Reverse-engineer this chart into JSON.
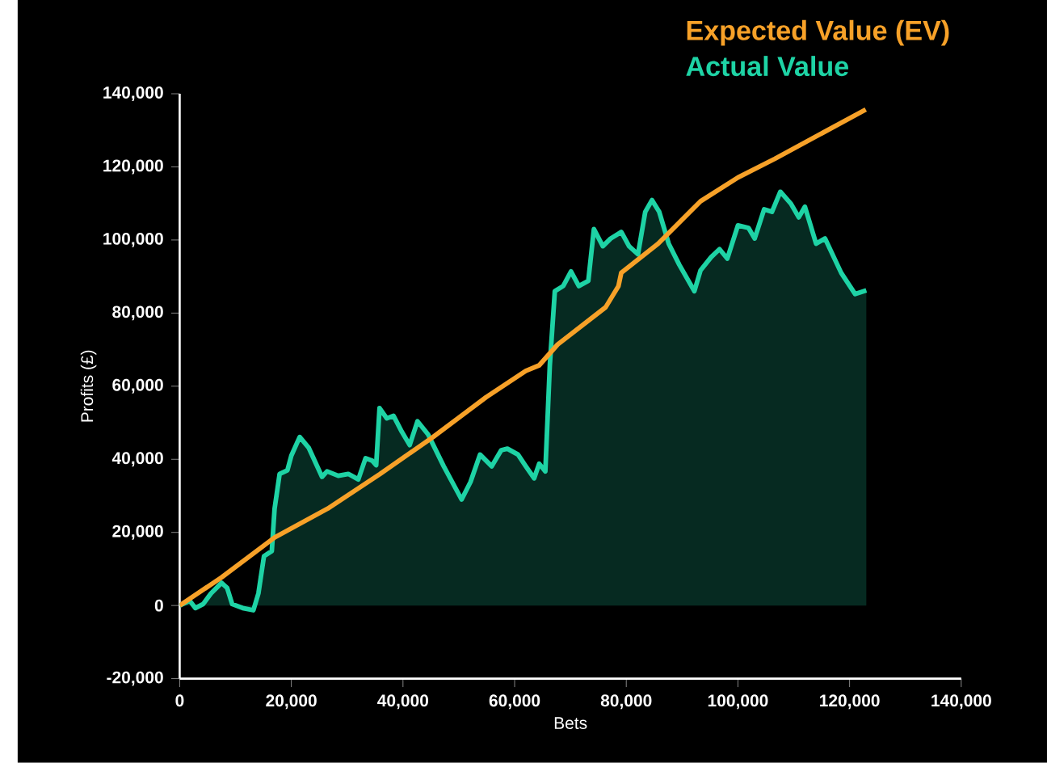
{
  "chart_data": {
    "type": "line",
    "xlabel": "Bets",
    "ylabel": "Profits (£)",
    "legend": "top right",
    "x": [
      0,
      7500,
      17000,
      26500,
      35900,
      45400,
      54900,
      62000,
      64400,
      67700,
      76300,
      78600,
      79100,
      85700,
      93300,
      100000,
      106600,
      122900
    ],
    "series": [
      {
        "name": "Expected Value (EV)",
        "color": "#f7a128",
        "values": [
          0,
          7700,
          18600,
          26500,
          36000,
          46100,
          57000,
          64200,
          65700,
          71400,
          81600,
          87400,
          91000,
          99000,
          110600,
          117100,
          122200,
          135700
        ]
      },
      {
        "name": "Actual Value",
        "type": "area",
        "color": "#1ed3a5",
        "x": [
          0,
          1800,
          2800,
          4200,
          5600,
          7500,
          8500,
          9400,
          11300,
          13200,
          14100,
          15100,
          16500,
          17000,
          17900,
          19300,
          20000,
          21500,
          23100,
          25500,
          26400,
          28400,
          30200,
          32000,
          33300,
          34500,
          35200,
          35800,
          37100,
          38300,
          39800,
          41200,
          42600,
          44500,
          47300,
          50500,
          52100,
          53800,
          55900,
          57600,
          58700,
          60600,
          62000,
          63500,
          64400,
          65500,
          66300,
          67200,
          68700,
          70100,
          71500,
          73200,
          74200,
          75800,
          77200,
          79100,
          80500,
          82100,
          83400,
          84600,
          85900,
          87600,
          89500,
          92200,
          93300,
          95200,
          96700,
          98100,
          100000,
          101900,
          103000,
          104700,
          106100,
          107600,
          109500,
          110900,
          112000,
          114000,
          115600,
          118500,
          121000,
          123000
        ],
        "values": [
          0,
          1300,
          -700,
          400,
          3300,
          6200,
          4800,
          400,
          -700,
          -1300,
          3300,
          13500,
          14900,
          26500,
          36000,
          37000,
          41000,
          46100,
          43200,
          35200,
          36700,
          35500,
          36000,
          34500,
          40300,
          39600,
          38400,
          54000,
          51200,
          51900,
          47500,
          43900,
          50400,
          46800,
          38100,
          29000,
          33800,
          41300,
          38100,
          42500,
          42900,
          41300,
          38100,
          34800,
          38800,
          36700,
          65700,
          86000,
          87400,
          91400,
          87400,
          88800,
          103000,
          98300,
          100400,
          102200,
          98300,
          96100,
          107700,
          110900,
          107700,
          99000,
          93200,
          86000,
          91700,
          95300,
          97500,
          94900,
          104000,
          103300,
          100400,
          108400,
          107700,
          113200,
          109900,
          106200,
          109100,
          99000,
          100400,
          91000,
          85200,
          86200
        ]
      }
    ],
    "xlim": [
      0,
      140000
    ],
    "ylim": [
      -20000,
      140000
    ],
    "xticks": [
      0,
      {
        "value": 20000,
        "label": "20,000"
      },
      {
        "value": 40000,
        "label": "40,000"
      },
      {
        "value": 60000,
        "label": "60,000"
      },
      {
        "value": 80000,
        "label": "80,000"
      },
      {
        "value": 100000,
        "label": "100,000"
      },
      {
        "value": 120000,
        "label": "120,000"
      },
      {
        "value": 140000,
        "label": "140,000"
      }
    ],
    "yticks": [
      {
        "value": -20000,
        "label": "-20,000"
      },
      0,
      {
        "value": 20000,
        "label": "20,000"
      },
      {
        "value": 40000,
        "label": "40,000"
      },
      {
        "value": 60000,
        "label": "60,000"
      },
      {
        "value": 80000,
        "label": "80,000"
      },
      {
        "value": 100000,
        "label": "100,000"
      },
      {
        "value": 120000,
        "label": "120,000"
      },
      {
        "value": 140000,
        "label": "140,000"
      }
    ]
  }
}
